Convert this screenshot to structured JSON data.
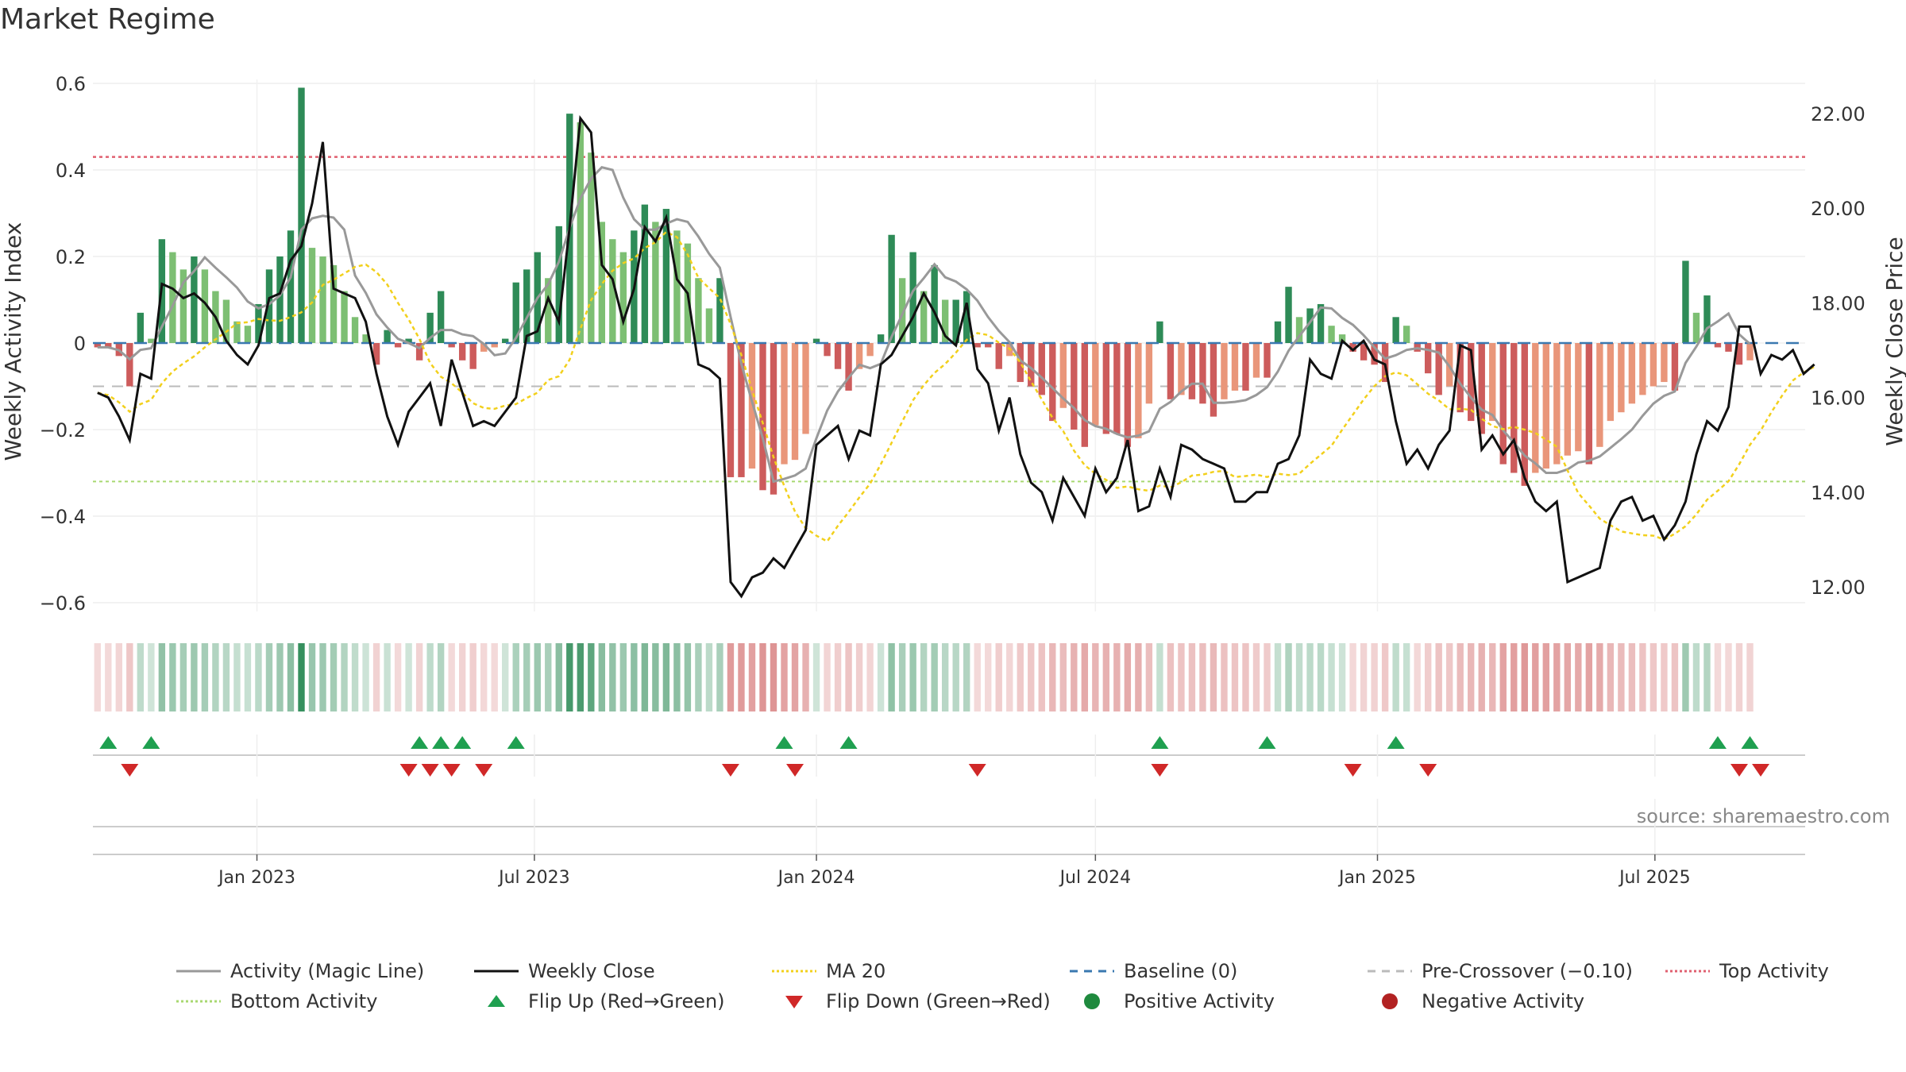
{
  "title": "Market Regime",
  "source": "source: sharemaestro.com",
  "colors": {
    "up_strong": "#2e8b57",
    "up_weak": "#7dbf73",
    "down_strong": "#cd5c5c",
    "down_weak": "#e9967a",
    "magic": "#999999",
    "close": "#111111",
    "ma20": "#f2d01c",
    "baseline": "#3a78b0",
    "precross": "#bbbbbb",
    "top": "#e06070",
    "bottom": "#a8d870",
    "flip_up": "#1fa050",
    "flip_down": "#d02828"
  },
  "legend": [
    {
      "label": "Activity (Magic Line)",
      "kind": "line",
      "color": "#999999",
      "dash": ""
    },
    {
      "label": "Weekly Close",
      "kind": "line",
      "color": "#111111",
      "dash": ""
    },
    {
      "label": "MA 20",
      "kind": "line",
      "color": "#f2d01c",
      "dash": "3,3"
    },
    {
      "label": "Baseline (0)",
      "kind": "line",
      "color": "#3a78b0",
      "dash": "10,8"
    },
    {
      "label": "Pre-Crossover (−0.10)",
      "kind": "line",
      "color": "#bbbbbb",
      "dash": "10,8"
    },
    {
      "label": "Top Activity",
      "kind": "line",
      "color": "#e06070",
      "dash": "3,3"
    },
    {
      "label": "Bottom Activity",
      "kind": "line",
      "color": "#a8d870",
      "dash": "3,3"
    },
    {
      "label": "Flip Up (Red→Green)",
      "kind": "tri-up",
      "color": "#1fa050"
    },
    {
      "label": "Flip Down (Green→Red)",
      "kind": "tri-down",
      "color": "#d02828"
    },
    {
      "label": "Positive Activity",
      "kind": "dot",
      "color": "#1f8a3e"
    },
    {
      "label": "Negative Activity",
      "kind": "dot",
      "color": "#b22222"
    }
  ],
  "chart_data": {
    "type": "bar",
    "x_start": "2022-09-19",
    "x_step_days": 7,
    "x_range": [
      "2022-09-16",
      "2025-10-07"
    ],
    "ylabel": "Weekly Activity Index",
    "ylim": [
      -0.6,
      0.6
    ],
    "yticks": [
      0.6,
      0.4,
      0.2,
      0,
      -0.2,
      -0.4,
      -0.6
    ],
    "y2label": "Weekly Close Price",
    "y2lim": [
      11.3,
      22.4
    ],
    "y2ticks": [
      22.0,
      20.0,
      18.0,
      16.0,
      14.0,
      12.0
    ],
    "xticks": [
      {
        "date": "2023-01-01",
        "label": "Jan 2023"
      },
      {
        "date": "2023-07-01",
        "label": "Jul 2023"
      },
      {
        "date": "2024-01-01",
        "label": "Jan 2024"
      },
      {
        "date": "2024-07-01",
        "label": "Jul 2024"
      },
      {
        "date": "2025-01-01",
        "label": "Jan 2025"
      },
      {
        "date": "2025-07-01",
        "label": "Jul 2025"
      }
    ],
    "reference_lines": {
      "baseline": 0,
      "pre_crossover": -0.1,
      "top_activity": 0.43,
      "bottom_activity": -0.32
    },
    "activity": [
      -0.01,
      -0.01,
      -0.03,
      -0.1,
      0.07,
      0.01,
      0.24,
      0.21,
      0.17,
      0.2,
      0.17,
      0.12,
      0.1,
      0.05,
      0.04,
      0.09,
      0.17,
      0.2,
      0.26,
      0.59,
      0.22,
      0.2,
      0.18,
      0.12,
      0.06,
      0.02,
      -0.05,
      0.03,
      -0.01,
      0.01,
      -0.04,
      0.07,
      0.12,
      -0.01,
      -0.04,
      -0.06,
      -0.02,
      -0.01,
      0.01,
      0.14,
      0.17,
      0.21,
      0.15,
      0.27,
      0.53,
      0.51,
      0.44,
      0.28,
      0.24,
      0.21,
      0.26,
      0.32,
      0.28,
      0.31,
      0.26,
      0.23,
      0.15,
      0.08,
      0.15,
      -0.31,
      -0.31,
      -0.29,
      -0.34,
      -0.35,
      -0.28,
      -0.27,
      -0.21,
      0.01,
      -0.03,
      -0.06,
      -0.11,
      -0.06,
      -0.03,
      0.02,
      0.25,
      0.15,
      0.21,
      0.12,
      0.18,
      0.1,
      0.1,
      0.12,
      -0.01,
      -0.01,
      -0.06,
      -0.03,
      -0.09,
      -0.1,
      -0.12,
      -0.18,
      -0.15,
      -0.2,
      -0.24,
      -0.19,
      -0.21,
      -0.21,
      -0.24,
      -0.22,
      -0.14,
      0.05,
      -0.13,
      -0.12,
      -0.13,
      -0.14,
      -0.17,
      -0.13,
      -0.11,
      -0.11,
      -0.08,
      -0.08,
      0.05,
      0.13,
      0.06,
      0.08,
      0.09,
      0.04,
      0.02,
      -0.02,
      -0.04,
      -0.05,
      -0.09,
      0.06,
      0.04,
      -0.02,
      -0.07,
      -0.12,
      -0.1,
      -0.16,
      -0.18,
      -0.21,
      -0.18,
      -0.28,
      -0.3,
      -0.33,
      -0.3,
      -0.29,
      -0.28,
      -0.26,
      -0.25,
      -0.28,
      -0.24,
      -0.18,
      -0.16,
      -0.14,
      -0.12,
      -0.1,
      -0.09,
      -0.11,
      0.19,
      0.07,
      0.11,
      -0.01,
      -0.02,
      -0.05,
      -0.04
    ],
    "weekly_close": [
      16.1,
      16.0,
      15.6,
      15.1,
      16.5,
      16.4,
      18.4,
      18.3,
      18.1,
      18.2,
      18.0,
      17.7,
      17.2,
      16.9,
      16.7,
      17.1,
      18.1,
      18.2,
      18.9,
      19.2,
      20.1,
      21.4,
      18.3,
      18.2,
      18.1,
      17.6,
      16.5,
      15.6,
      15.0,
      15.7,
      16.0,
      16.3,
      15.4,
      16.8,
      16.1,
      15.4,
      15.5,
      15.4,
      15.7,
      16.0,
      17.3,
      17.4,
      18.1,
      17.6,
      19.6,
      21.9,
      21.6,
      18.8,
      18.5,
      17.6,
      18.3,
      19.6,
      19.3,
      19.8,
      18.5,
      18.2,
      16.7,
      16.6,
      16.4,
      12.1,
      11.8,
      12.2,
      12.3,
      12.6,
      12.4,
      12.8,
      13.2,
      15.0,
      15.2,
      15.4,
      14.7,
      15.3,
      15.2,
      16.7,
      16.9,
      17.3,
      17.7,
      18.2,
      17.8,
      17.3,
      17.1,
      18.0,
      16.6,
      16.3,
      15.3,
      16.0,
      14.8,
      14.2,
      14.0,
      13.4,
      14.3,
      13.9,
      13.5,
      14.5,
      14.0,
      14.3,
      15.1,
      13.6,
      13.7,
      14.5,
      13.9,
      15.0,
      14.9,
      14.7,
      14.6,
      14.5,
      13.8,
      13.8,
      14.0,
      14.0,
      14.6,
      14.7,
      15.2,
      16.8,
      16.5,
      16.4,
      17.2,
      17.0,
      17.2,
      16.8,
      16.7,
      15.5,
      14.6,
      14.9,
      14.5,
      15.0,
      15.3,
      17.1,
      17.0,
      14.9,
      15.2,
      14.8,
      15.1,
      14.3,
      13.8,
      13.6,
      13.8,
      12.1,
      12.2,
      12.3,
      12.4,
      13.4,
      13.8,
      13.9,
      13.4,
      13.5,
      13.0,
      13.3,
      13.8,
      14.8,
      15.5,
      15.3,
      15.8,
      17.5,
      17.5,
      16.5,
      16.9,
      16.8,
      17.0,
      16.5,
      16.7
    ],
    "markers": {
      "flip_up": [
        "2022-09-26",
        "2022-10-24",
        "2023-04-17",
        "2023-05-01",
        "2023-05-15",
        "2023-06-19",
        "2023-12-11",
        "2024-01-22",
        "2024-08-12",
        "2024-10-21",
        "2025-01-13",
        "2025-08-11",
        "2025-09-01"
      ],
      "flip_down": [
        "2022-10-10",
        "2023-04-10",
        "2023-04-24",
        "2023-05-08",
        "2023-05-29",
        "2023-11-06",
        "2023-12-18",
        "2024-04-15",
        "2024-08-12",
        "2024-12-16",
        "2025-02-03",
        "2025-08-25",
        "2025-09-08"
      ]
    }
  }
}
